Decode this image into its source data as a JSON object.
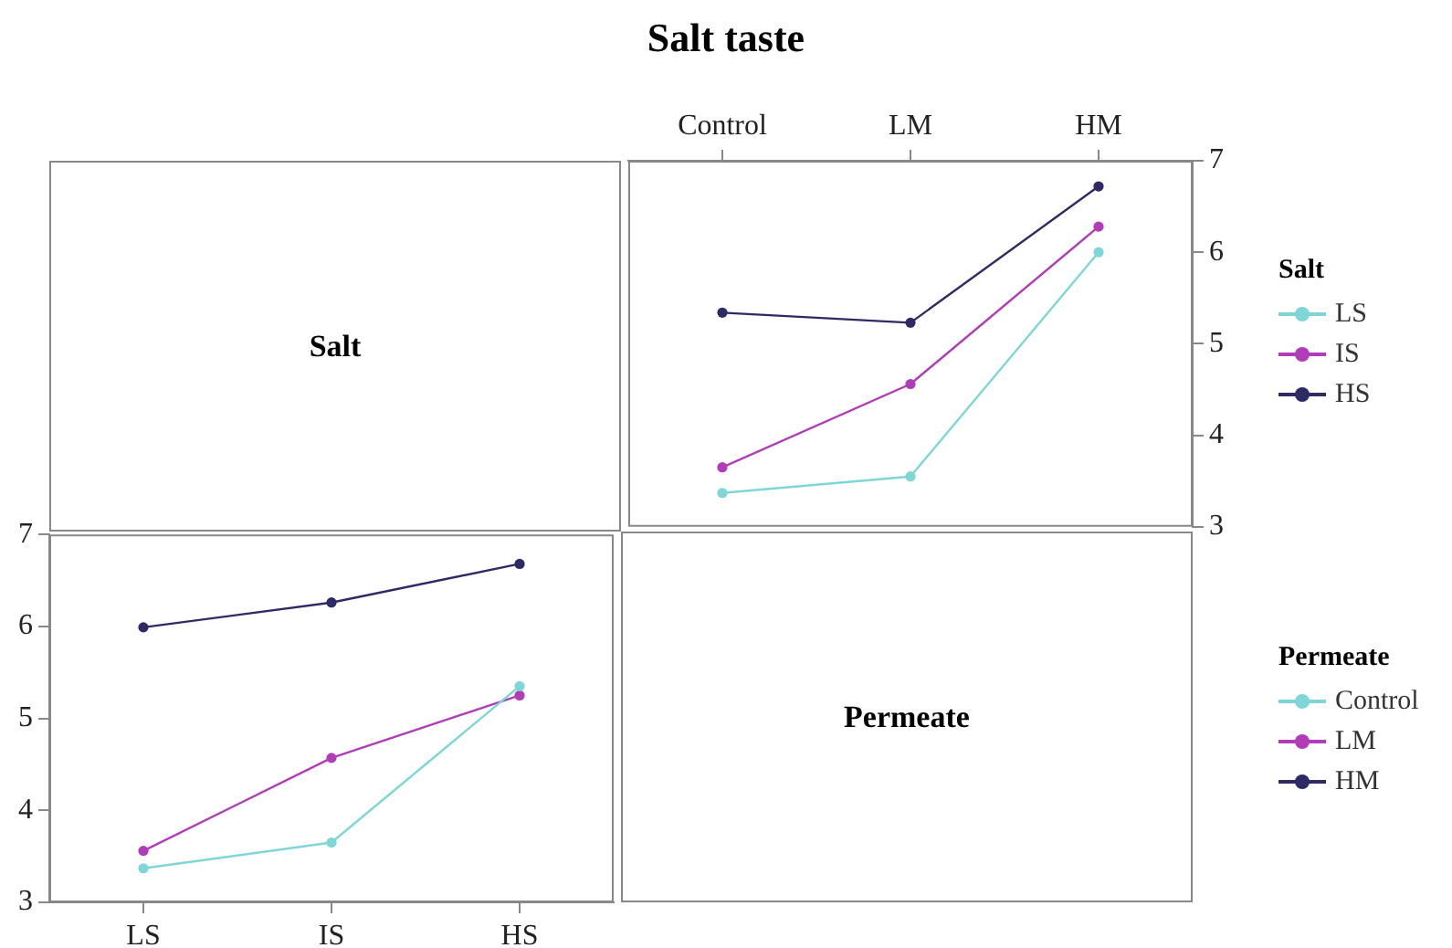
{
  "chart_data": [
    {
      "type": "other",
      "title": "Salt taste",
      "annotations": [
        "Salt"
      ]
    },
    {
      "type": "line",
      "categories": [
        "Control",
        "LM",
        "HM"
      ],
      "legend_title": "Salt",
      "legend": "right",
      "grid": false,
      "marker": "circle",
      "ylim": [
        3,
        7
      ],
      "yticks": [
        3,
        4,
        5,
        6,
        7
      ],
      "series": [
        {
          "name": "LS",
          "color": "#7fd6d6",
          "values": [
            3.37,
            3.55,
            6.0
          ]
        },
        {
          "name": "IS",
          "color": "#b03cb8",
          "values": [
            3.65,
            4.56,
            6.28
          ]
        },
        {
          "name": "HS",
          "color": "#2e2a66",
          "values": [
            5.34,
            5.23,
            6.72
          ]
        }
      ]
    },
    {
      "type": "line",
      "categories": [
        "LS",
        "IS",
        "HS"
      ],
      "legend_title": "Permeate",
      "legend": "right",
      "grid": false,
      "marker": "circle",
      "ylim": [
        3,
        7
      ],
      "yticks": [
        3,
        4,
        5,
        6,
        7
      ],
      "series": [
        {
          "name": "Control",
          "color": "#7fd6d6",
          "values": [
            3.37,
            3.65,
            5.35
          ]
        },
        {
          "name": "LM",
          "color": "#b03cb8",
          "values": [
            3.56,
            4.57,
            5.25
          ]
        },
        {
          "name": "HM",
          "color": "#2e2a66",
          "values": [
            5.99,
            6.26,
            6.68
          ]
        }
      ]
    },
    {
      "type": "other",
      "annotations": [
        "Permeate"
      ]
    }
  ]
}
